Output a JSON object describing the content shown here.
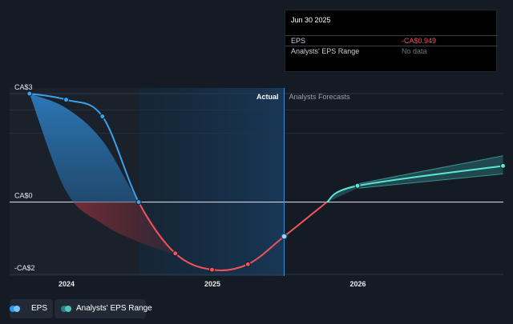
{
  "tooltip": {
    "date": "Jun 30 2025",
    "rows": [
      {
        "label": "EPS",
        "value": "-CA$0.949",
        "color": "#f0535b"
      },
      {
        "label": "Analysts' EPS Range",
        "value": "No data",
        "color": "#6f7883"
      }
    ]
  },
  "legend": {
    "items": [
      {
        "label": "EPS",
        "color": "#2f9ae8"
      },
      {
        "label": "Analysts' EPS Range",
        "color": "#4cc9b8"
      }
    ]
  },
  "colors": {
    "background": "#151b24",
    "actual_band": "#16324a",
    "eps_positive": "#3aa0ec",
    "eps_negative": "#f0535b",
    "forecast": "#5ce6d6"
  },
  "chart_data": {
    "type": "line",
    "title": "",
    "xlabel": "",
    "ylabel": "",
    "x_ticks": [
      "2024",
      "2025",
      "2026"
    ],
    "y_ticks": [
      {
        "label": "CA$3",
        "value": 3
      },
      {
        "label": "CA$0",
        "value": 0
      },
      {
        "label": "-CA$2",
        "value": -2
      }
    ],
    "ylim": [
      -2.1,
      3.3
    ],
    "xlim": [
      "2023-08-01",
      "2026-12-31"
    ],
    "divider_date": "2025-06-30",
    "actual_label": "Actual",
    "forecast_label": "Analysts Forecasts",
    "series": [
      {
        "name": "EPS",
        "points": [
          {
            "x": "2023-09-30",
            "y": 3.0
          },
          {
            "x": "2023-12-31",
            "y": 2.83
          },
          {
            "x": "2024-03-31",
            "y": 2.37
          },
          {
            "x": "2024-06-30",
            "y": 0.0
          },
          {
            "x": "2024-09-30",
            "y": -1.42
          },
          {
            "x": "2024-12-31",
            "y": -1.87
          },
          {
            "x": "2025-03-31",
            "y": -1.72
          },
          {
            "x": "2025-06-30",
            "y": -0.949
          }
        ]
      },
      {
        "name": "Analysts' EPS Range",
        "points": [
          {
            "x": "2025-06-30",
            "y": -0.949
          },
          {
            "x": "2025-12-31",
            "y": 0.45
          },
          {
            "x": "2026-12-31",
            "y": 1.0
          }
        ],
        "range_high": [
          {
            "x": "2025-12-31",
            "y": 0.5
          },
          {
            "x": "2026-12-31",
            "y": 1.28
          }
        ],
        "range_low": [
          {
            "x": "2025-12-31",
            "y": 0.38
          },
          {
            "x": "2026-12-31",
            "y": 0.78
          }
        ]
      }
    ],
    "historical_range": {
      "upper": [
        {
          "x": "2023-09-30",
          "y": 3.0
        },
        {
          "x": "2023-12-31",
          "y": 2.6
        },
        {
          "x": "2024-03-31",
          "y": 1.7
        },
        {
          "x": "2024-06-30",
          "y": 0.0
        },
        {
          "x": "2024-09-30",
          "y": -1.45
        }
      ],
      "lower": [
        {
          "x": "2023-09-30",
          "y": 3.0
        },
        {
          "x": "2023-12-31",
          "y": 0.3
        },
        {
          "x": "2024-03-31",
          "y": -0.6
        },
        {
          "x": "2024-06-30",
          "y": -1.1
        },
        {
          "x": "2024-09-30",
          "y": -1.45
        }
      ]
    },
    "grid": true,
    "legend_position": "bottom-left"
  }
}
